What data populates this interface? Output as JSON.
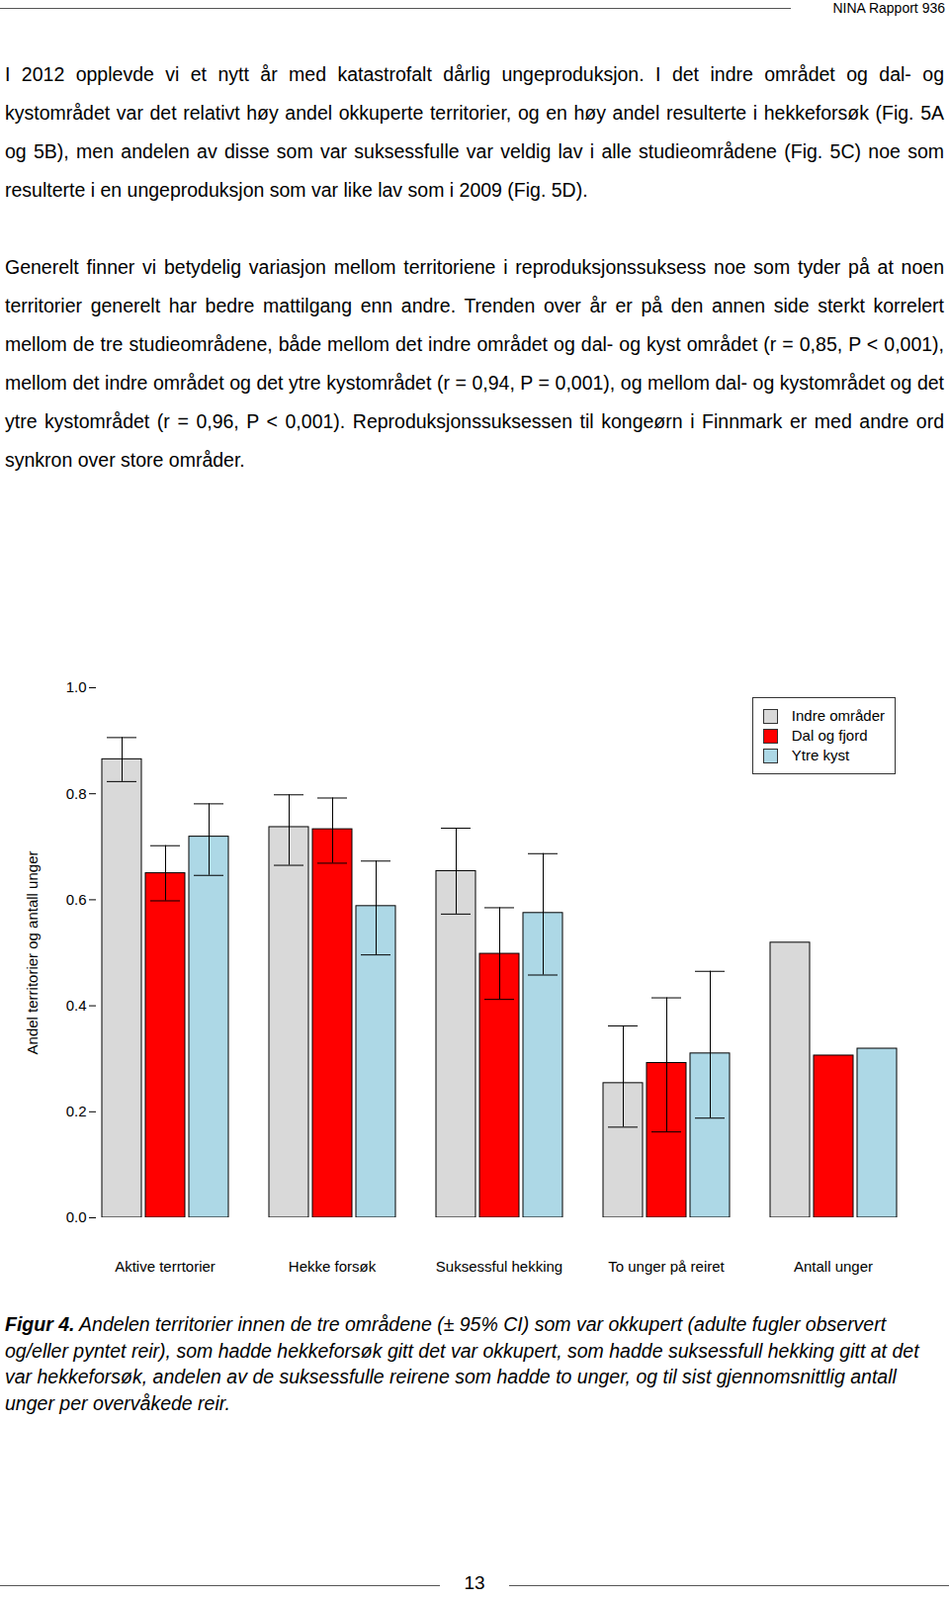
{
  "header": {
    "report": "NINA Rapport 936"
  },
  "paragraphs": [
    "I 2012 opplevde vi et nytt år med katastrofalt dårlig ungeproduksjon. I det indre området og dal- og kystområdet var det relativt høy andel okkuperte territorier, og en høy andel resulterte i hekkeforsøk (Fig. 5A og 5B), men andelen av disse som var suksessfulle var veldig lav i alle studieområdene (Fig. 5C) noe som resulterte i en ungeproduksjon som var like lav som i 2009 (Fig. 5D).",
    "Generelt finner vi betydelig variasjon mellom territoriene i reproduksjonssuksess noe som tyder på at noen territorier generelt har bedre mattilgang enn andre. Trenden over år er på den annen side sterkt korrelert mellom de tre studieområdene, både mellom det indre området og dal- og kyst området (r = 0,85, P < 0,001), mellom det indre området og det ytre kystområdet (r = 0,94, P = 0,001), og mellom dal- og kystområdet og det ytre kystområdet (r = 0,96, P < 0,001). Reproduksjonssuksessen til kongeørn i Finnmark er med andre ord synkron over store områder."
  ],
  "chart_data": {
    "type": "bar",
    "categories": [
      "Aktive terrtorier",
      "Hekke forsøk",
      "Suksessful hekking",
      "To unger på reiret",
      "Antall unger"
    ],
    "series": [
      {
        "name": "Indre områder",
        "color": "#d9d9d9",
        "values": [
          0.865,
          0.737,
          0.654,
          0.254,
          0.519
        ],
        "ci_low": [
          0.823,
          0.665,
          0.573,
          0.171,
          null
        ],
        "ci_high": [
          0.906,
          0.798,
          0.735,
          0.362,
          null
        ]
      },
      {
        "name": "Dal og fjord",
        "color": "#ff0000",
        "values": [
          0.65,
          0.733,
          0.498,
          0.292,
          0.306
        ],
        "ci_low": [
          0.598,
          0.669,
          0.412,
          0.162,
          null
        ],
        "ci_high": [
          0.702,
          0.792,
          0.585,
          0.415,
          null
        ]
      },
      {
        "name": "Ytre kyst",
        "color": "#add8e6",
        "values": [
          0.719,
          0.588,
          0.575,
          0.31,
          0.319
        ],
        "ci_low": [
          0.646,
          0.496,
          0.458,
          0.188,
          null
        ],
        "ci_high": [
          0.781,
          0.673,
          0.687,
          0.465,
          null
        ]
      }
    ],
    "ylabel": "Andel territorier og antall unger",
    "ylim": [
      0,
      1
    ],
    "yticks": [
      {
        "value": 0,
        "label": "0.0"
      },
      {
        "value": 0.2,
        "label": "0.2"
      },
      {
        "value": 0.4,
        "label": "0.4"
      },
      {
        "value": 0.6,
        "label": "0.6"
      },
      {
        "value": 0.8,
        "label": "0.8"
      },
      {
        "value": 1,
        "label": "1.0"
      }
    ],
    "legend": "top-right",
    "grid": false
  },
  "caption": {
    "label": "Figur 4.",
    "text": "Andelen territorier innen de tre områdene (± 95% CI) som var okkupert (adulte fugler observert og/eller pyntet reir), som hadde hekkeforsøk gitt det var okkupert, som hadde suksessfull hekking gitt at det var hekkeforsøk, andelen av de suksessfulle reirene som hadde to unger, og til sist gjennomsnittlig antall unger per overvåkede reir."
  },
  "page_number": "13"
}
